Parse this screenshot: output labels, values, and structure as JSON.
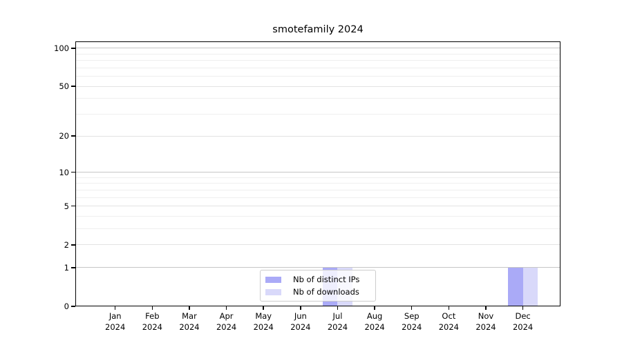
{
  "chart_data": {
    "type": "bar",
    "title": "smotefamily 2024",
    "xlabel": "",
    "ylabel": "",
    "categories": [
      "Jan 2024",
      "Feb 2024",
      "Mar 2024",
      "Apr 2024",
      "May 2024",
      "Jun 2024",
      "Jul 2024",
      "Aug 2024",
      "Sep 2024",
      "Oct 2024",
      "Nov 2024",
      "Dec 2024"
    ],
    "series": [
      {
        "name": "Nb of distinct IPs",
        "color": "#aaaaf7",
        "values": [
          0,
          0,
          0,
          0,
          0,
          0,
          1,
          0,
          0,
          0,
          0,
          1
        ]
      },
      {
        "name": "Nb of downloads",
        "color": "#d9d9fa",
        "values": [
          0,
          0,
          0,
          0,
          0,
          0,
          1,
          0,
          0,
          0,
          0,
          1
        ]
      }
    ],
    "yscale": "log1p",
    "ylim": [
      0,
      113
    ],
    "y_ticks": [
      0,
      1,
      2,
      5,
      10,
      20,
      50,
      100
    ],
    "y_gridlines_major": [
      1,
      10,
      100
    ],
    "y_gridlines_mid": [
      2,
      5,
      20,
      50
    ],
    "y_gridlines_minor": [
      3,
      4,
      6,
      7,
      8,
      9,
      30,
      40,
      60,
      70,
      80,
      90
    ],
    "grid": "horizontal",
    "legend_position": "lower center",
    "colors": {
      "spine": "#000000",
      "grid_major": "#c6c6c6",
      "grid_mid": "#e2e2e2",
      "grid_minor": "#efefef"
    }
  }
}
